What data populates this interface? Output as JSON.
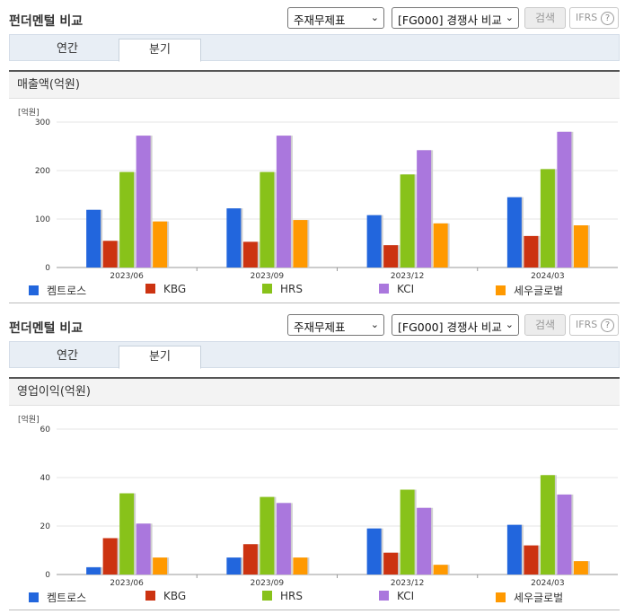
{
  "sections": [
    {
      "title": "펀더멘털 비교",
      "select_a": "주재무제표",
      "select_b": "[FG000] 경쟁사 비교",
      "search_label": "검색",
      "ifrs_label": "IFRS",
      "help_label": "?",
      "tabs": [
        {
          "label": "연간"
        },
        {
          "label": "분기"
        }
      ],
      "active_tab": "분기",
      "panel_title": "매출액(억원)",
      "unit": "[억원]"
    },
    {
      "title": "펀더멘털 비교",
      "select_a": "주재무제표",
      "select_b": "[FG000] 경쟁사 비교",
      "search_label": "검색",
      "ifrs_label": "IFRS",
      "help_label": "?",
      "tabs": [
        {
          "label": "연간"
        },
        {
          "label": "분기"
        }
      ],
      "active_tab": "분기",
      "panel_title": "영업이익(억원)",
      "unit": "[억원]"
    }
  ],
  "colors": {
    "켐트로스": "#2266dd",
    "KBG": "#cc3311",
    "HRS": "#88c21a",
    "KCI": "#aa77dd",
    "세우글로벌": "#ff9900"
  },
  "chart_data": [
    {
      "type": "bar",
      "title": "매출액(억원)",
      "ylabel": "[억원]",
      "categories": [
        "2023/06",
        "2023/09",
        "2023/12",
        "2024/03"
      ],
      "ylim": [
        0,
        300
      ],
      "yticks": [
        0,
        100,
        200,
        300
      ],
      "grid": true,
      "legend": "bottom",
      "series": [
        {
          "name": "켐트로스",
          "values": [
            119,
            122,
            108,
            145
          ]
        },
        {
          "name": "KBG",
          "values": [
            55,
            53,
            46,
            65
          ]
        },
        {
          "name": "HRS",
          "values": [
            197,
            197,
            192,
            203
          ]
        },
        {
          "name": "KCI",
          "values": [
            272,
            272,
            242,
            280
          ]
        },
        {
          "name": "세우글로벌",
          "values": [
            95,
            98,
            91,
            87
          ]
        }
      ]
    },
    {
      "type": "bar",
      "title": "영업이익(억원)",
      "ylabel": "[억원]",
      "categories": [
        "2023/06",
        "2023/09",
        "2023/12",
        "2024/03"
      ],
      "ylim": [
        0,
        60
      ],
      "yticks": [
        0,
        20,
        40,
        60
      ],
      "grid": true,
      "legend": "bottom",
      "series": [
        {
          "name": "켐트로스",
          "values": [
            3,
            7,
            19,
            20.5
          ]
        },
        {
          "name": "KBG",
          "values": [
            15,
            12.5,
            9,
            12
          ]
        },
        {
          "name": "HRS",
          "values": [
            33.5,
            32,
            35,
            41
          ]
        },
        {
          "name": "KCI",
          "values": [
            21,
            29.5,
            27.5,
            33
          ]
        },
        {
          "name": "세우글로벌",
          "values": [
            7,
            7,
            4,
            5.5
          ]
        }
      ]
    }
  ]
}
